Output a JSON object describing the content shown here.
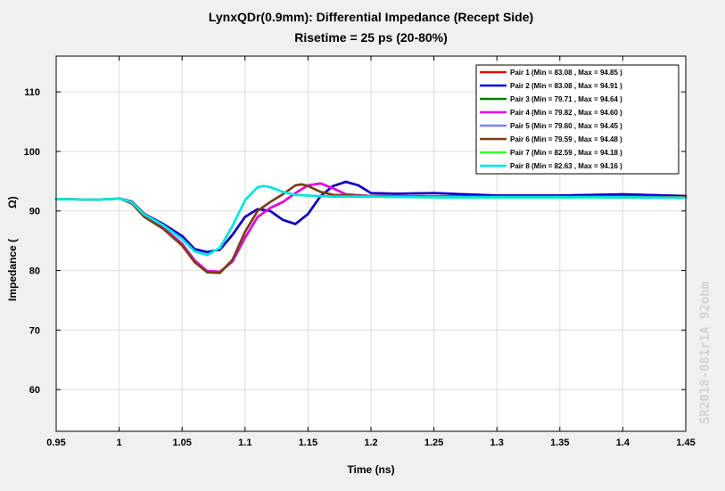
{
  "chart_data": {
    "type": "line",
    "title": "LynxQDr(0.9mm): Differential Impedance (Recept Side)",
    "subtitle": "Risetime = 25 ps (20-80%)",
    "xlabel": "Time (ns)",
    "ylabel_left": "Impedance (",
    "ylabel_right": "Ω)",
    "xlim": [
      0.95,
      1.45
    ],
    "ylim": [
      53,
      116
    ],
    "x_ticks": [
      0.95,
      1,
      1.05,
      1.1,
      1.15,
      1.2,
      1.25,
      1.3,
      1.35,
      1.4,
      1.45
    ],
    "x_tick_labels": [
      "0.95",
      "1",
      "1.05",
      "1.1",
      "1.15",
      "1.2",
      "1.25",
      "1.3",
      "1.35",
      "1.4",
      "1.45"
    ],
    "y_ticks": [
      60,
      70,
      80,
      90,
      100,
      110
    ],
    "y_tick_labels": [
      "60",
      "70",
      "80",
      "90",
      "100",
      "110"
    ],
    "grid": true,
    "legend_position": "top-right",
    "series": [
      {
        "name": "Pair 1 (Min = 83.08 , Max = 94.85 )",
        "color": "#e8000b",
        "points": [
          [
            0.95,
            92.0
          ],
          [
            0.98,
            91.9
          ],
          [
            0.995,
            92.0
          ],
          [
            1.0,
            92.1
          ],
          [
            1.01,
            91.6
          ],
          [
            1.02,
            89.5
          ],
          [
            1.035,
            87.8
          ],
          [
            1.05,
            85.8
          ],
          [
            1.06,
            83.6
          ],
          [
            1.07,
            83.1
          ],
          [
            1.08,
            83.5
          ],
          [
            1.09,
            86.0
          ],
          [
            1.1,
            89.0
          ],
          [
            1.11,
            90.3
          ],
          [
            1.12,
            90.0
          ],
          [
            1.13,
            88.5
          ],
          [
            1.14,
            87.8
          ],
          [
            1.15,
            89.5
          ],
          [
            1.16,
            92.5
          ],
          [
            1.17,
            94.2
          ],
          [
            1.18,
            94.85
          ],
          [
            1.19,
            94.3
          ],
          [
            1.2,
            93.0
          ],
          [
            1.22,
            92.9
          ],
          [
            1.25,
            93.0
          ],
          [
            1.3,
            92.6
          ],
          [
            1.35,
            92.6
          ],
          [
            1.4,
            92.8
          ],
          [
            1.45,
            92.5
          ]
        ]
      },
      {
        "name": "Pair 2 (Min = 83.08 , Max = 94.91 )",
        "color": "#0000cd",
        "points": [
          [
            0.95,
            92.0
          ],
          [
            0.98,
            91.9
          ],
          [
            0.995,
            92.0
          ],
          [
            1.0,
            92.1
          ],
          [
            1.01,
            91.6
          ],
          [
            1.02,
            89.5
          ],
          [
            1.035,
            87.8
          ],
          [
            1.05,
            85.8
          ],
          [
            1.06,
            83.6
          ],
          [
            1.07,
            83.1
          ],
          [
            1.08,
            83.5
          ],
          [
            1.09,
            86.0
          ],
          [
            1.1,
            89.0
          ],
          [
            1.11,
            90.3
          ],
          [
            1.12,
            90.0
          ],
          [
            1.13,
            88.5
          ],
          [
            1.14,
            87.8
          ],
          [
            1.15,
            89.5
          ],
          [
            1.16,
            92.5
          ],
          [
            1.17,
            94.2
          ],
          [
            1.18,
            94.91
          ],
          [
            1.19,
            94.3
          ],
          [
            1.2,
            93.0
          ],
          [
            1.22,
            92.9
          ],
          [
            1.25,
            93.0
          ],
          [
            1.3,
            92.6
          ],
          [
            1.35,
            92.6
          ],
          [
            1.4,
            92.8
          ],
          [
            1.45,
            92.5
          ]
        ]
      },
      {
        "name": "Pair 3 (Min = 79.71 , Max = 94.64 )",
        "color": "#008000",
        "points": [
          [
            0.95,
            92.0
          ],
          [
            0.98,
            91.9
          ],
          [
            0.995,
            92.0
          ],
          [
            1.0,
            92.1
          ],
          [
            1.01,
            91.4
          ],
          [
            1.02,
            89.2
          ],
          [
            1.035,
            87.2
          ],
          [
            1.05,
            84.5
          ],
          [
            1.06,
            81.7
          ],
          [
            1.07,
            79.8
          ],
          [
            1.08,
            79.71
          ],
          [
            1.09,
            81.5
          ],
          [
            1.1,
            85.5
          ],
          [
            1.11,
            89.0
          ],
          [
            1.12,
            90.5
          ],
          [
            1.13,
            91.5
          ],
          [
            1.14,
            93.0
          ],
          [
            1.15,
            94.3
          ],
          [
            1.16,
            94.64
          ],
          [
            1.17,
            93.8
          ],
          [
            1.18,
            92.8
          ],
          [
            1.2,
            92.5
          ],
          [
            1.25,
            92.4
          ],
          [
            1.3,
            92.4
          ],
          [
            1.35,
            92.4
          ],
          [
            1.4,
            92.4
          ],
          [
            1.45,
            92.3
          ]
        ]
      },
      {
        "name": "Pair 4 (Min = 79.82 , Max = 94.60 )",
        "color": "#e600e6",
        "points": [
          [
            0.95,
            92.0
          ],
          [
            0.98,
            91.9
          ],
          [
            0.995,
            92.0
          ],
          [
            1.0,
            92.1
          ],
          [
            1.01,
            91.4
          ],
          [
            1.02,
            89.2
          ],
          [
            1.035,
            87.2
          ],
          [
            1.05,
            84.5
          ],
          [
            1.06,
            81.7
          ],
          [
            1.07,
            79.9
          ],
          [
            1.08,
            79.82
          ],
          [
            1.09,
            81.5
          ],
          [
            1.1,
            85.5
          ],
          [
            1.11,
            89.0
          ],
          [
            1.12,
            90.5
          ],
          [
            1.13,
            91.5
          ],
          [
            1.14,
            93.0
          ],
          [
            1.15,
            94.3
          ],
          [
            1.16,
            94.6
          ],
          [
            1.17,
            93.8
          ],
          [
            1.18,
            92.8
          ],
          [
            1.2,
            92.5
          ],
          [
            1.25,
            92.4
          ],
          [
            1.3,
            92.4
          ],
          [
            1.35,
            92.4
          ],
          [
            1.4,
            92.4
          ],
          [
            1.45,
            92.3
          ]
        ]
      },
      {
        "name": "Pair 5 (Min = 79.60 , Max = 94.45 )",
        "color": "#8080f0",
        "points": [
          [
            0.95,
            92.0
          ],
          [
            0.98,
            91.9
          ],
          [
            0.995,
            92.0
          ],
          [
            1.0,
            92.1
          ],
          [
            1.01,
            91.3
          ],
          [
            1.02,
            89.0
          ],
          [
            1.035,
            87.0
          ],
          [
            1.05,
            84.2
          ],
          [
            1.06,
            81.4
          ],
          [
            1.07,
            79.7
          ],
          [
            1.08,
            79.6
          ],
          [
            1.09,
            81.8
          ],
          [
            1.1,
            86.5
          ],
          [
            1.11,
            90.0
          ],
          [
            1.12,
            91.5
          ],
          [
            1.13,
            92.8
          ],
          [
            1.14,
            94.3
          ],
          [
            1.145,
            94.45
          ],
          [
            1.15,
            94.2
          ],
          [
            1.16,
            93.2
          ],
          [
            1.17,
            92.7
          ],
          [
            1.2,
            92.5
          ],
          [
            1.25,
            92.4
          ],
          [
            1.3,
            92.4
          ],
          [
            1.35,
            92.4
          ],
          [
            1.4,
            92.3
          ],
          [
            1.45,
            92.3
          ]
        ]
      },
      {
        "name": "Pair 6 (Min = 79.59 , Max = 94.48 )",
        "color": "#7b3f12",
        "points": [
          [
            0.95,
            92.0
          ],
          [
            0.98,
            91.9
          ],
          [
            0.995,
            92.0
          ],
          [
            1.0,
            92.1
          ],
          [
            1.01,
            91.3
          ],
          [
            1.02,
            89.0
          ],
          [
            1.035,
            87.0
          ],
          [
            1.05,
            84.2
          ],
          [
            1.06,
            81.4
          ],
          [
            1.07,
            79.7
          ],
          [
            1.08,
            79.59
          ],
          [
            1.09,
            81.8
          ],
          [
            1.1,
            86.5
          ],
          [
            1.11,
            90.0
          ],
          [
            1.12,
            91.5
          ],
          [
            1.13,
            92.8
          ],
          [
            1.14,
            94.3
          ],
          [
            1.145,
            94.48
          ],
          [
            1.15,
            94.2
          ],
          [
            1.16,
            93.2
          ],
          [
            1.17,
            92.7
          ],
          [
            1.2,
            92.5
          ],
          [
            1.25,
            92.4
          ],
          [
            1.3,
            92.4
          ],
          [
            1.35,
            92.4
          ],
          [
            1.4,
            92.3
          ],
          [
            1.45,
            92.3
          ]
        ]
      },
      {
        "name": "Pair 7 (Min = 82.59 , Max = 94.18 )",
        "color": "#33ff33",
        "points": [
          [
            0.95,
            92.0
          ],
          [
            0.98,
            91.9
          ],
          [
            0.995,
            92.0
          ],
          [
            1.0,
            92.1
          ],
          [
            1.01,
            91.5
          ],
          [
            1.02,
            89.4
          ],
          [
            1.035,
            87.6
          ],
          [
            1.05,
            85.3
          ],
          [
            1.06,
            83.2
          ],
          [
            1.07,
            82.59
          ],
          [
            1.08,
            83.8
          ],
          [
            1.09,
            87.5
          ],
          [
            1.1,
            91.8
          ],
          [
            1.11,
            94.0
          ],
          [
            1.115,
            94.18
          ],
          [
            1.12,
            94.0
          ],
          [
            1.13,
            93.2
          ],
          [
            1.14,
            92.7
          ],
          [
            1.15,
            92.6
          ],
          [
            1.17,
            92.4
          ],
          [
            1.2,
            92.4
          ],
          [
            1.25,
            92.3
          ],
          [
            1.3,
            92.3
          ],
          [
            1.35,
            92.3
          ],
          [
            1.4,
            92.3
          ],
          [
            1.45,
            92.2
          ]
        ]
      },
      {
        "name": "Pair 8 (Min = 82.63 , Max = 94.16 )",
        "color": "#00e5e5",
        "points": [
          [
            0.95,
            92.0
          ],
          [
            0.98,
            91.9
          ],
          [
            0.995,
            92.0
          ],
          [
            1.0,
            92.1
          ],
          [
            1.01,
            91.5
          ],
          [
            1.02,
            89.4
          ],
          [
            1.035,
            87.6
          ],
          [
            1.05,
            85.3
          ],
          [
            1.06,
            83.2
          ],
          [
            1.07,
            82.63
          ],
          [
            1.08,
            83.8
          ],
          [
            1.09,
            87.5
          ],
          [
            1.1,
            91.8
          ],
          [
            1.11,
            94.0
          ],
          [
            1.115,
            94.16
          ],
          [
            1.12,
            94.0
          ],
          [
            1.13,
            93.2
          ],
          [
            1.14,
            92.7
          ],
          [
            1.15,
            92.6
          ],
          [
            1.17,
            92.4
          ],
          [
            1.2,
            92.4
          ],
          [
            1.25,
            92.3
          ],
          [
            1.3,
            92.3
          ],
          [
            1.35,
            92.3
          ],
          [
            1.4,
            92.3
          ],
          [
            1.45,
            92.2
          ]
        ]
      }
    ]
  },
  "watermark": "SR2018-081r1A 92ohm"
}
